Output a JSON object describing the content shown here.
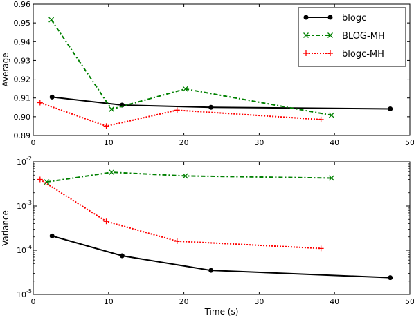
{
  "chart_data": [
    {
      "type": "line",
      "xlabel": "",
      "ylabel": "Average",
      "xlim": [
        0,
        50
      ],
      "ylim": [
        0.89,
        0.96
      ],
      "xticks": [
        "0",
        "10",
        "20",
        "30",
        "40",
        "50"
      ],
      "yticks": [
        "0.89",
        "0.90",
        "0.91",
        "0.92",
        "0.93",
        "0.94",
        "0.95",
        "0.96"
      ],
      "legend": {
        "position": "top-right"
      },
      "series": [
        {
          "name": "blogc",
          "color": "#000000",
          "style": "solid",
          "marker": "circle",
          "x": [
            2.5,
            11.8,
            23.6,
            47.4
          ],
          "y": [
            0.9105,
            0.9062,
            0.905,
            0.9042
          ]
        },
        {
          "name": "BLOG-MH",
          "color": "#008000",
          "style": "dashdot",
          "marker": "x",
          "x": [
            2.4,
            10.4,
            20.2,
            39.6
          ],
          "y": [
            0.9517,
            0.904,
            0.9148,
            0.9008
          ]
        },
        {
          "name": "blogc-MH",
          "color": "#ff0000",
          "style": "dotted",
          "marker": "plus",
          "x": [
            0.9,
            9.7,
            19.1,
            38.2
          ],
          "y": [
            0.9075,
            0.895,
            0.9035,
            0.8985
          ]
        }
      ]
    },
    {
      "type": "line",
      "xlabel": "Time (s)",
      "ylabel": "Variance",
      "xlim": [
        0,
        50
      ],
      "ylim_exp": [
        -5,
        -2
      ],
      "yscale": "log",
      "xticks": [
        "0",
        "10",
        "20",
        "30",
        "40",
        "50"
      ],
      "yticks": [
        {
          "base": "10",
          "exp": "-5",
          "value": -5
        },
        {
          "base": "10",
          "exp": "-4",
          "value": -4
        },
        {
          "base": "10",
          "exp": "-3",
          "value": -3
        },
        {
          "base": "10",
          "exp": "-2",
          "value": -2
        }
      ],
      "series": [
        {
          "name": "blogc",
          "color": "#000000",
          "style": "solid",
          "marker": "circle",
          "x": [
            2.5,
            11.8,
            23.6,
            47.4
          ],
          "y": [
            0.00021,
            7.5e-05,
            3.5e-05,
            2.4e-05
          ]
        },
        {
          "name": "BLOG-MH",
          "color": "#008000",
          "style": "dashdot",
          "marker": "x",
          "x": [
            1.8,
            10.4,
            20.2,
            39.6
          ],
          "y": [
            0.0035,
            0.0058,
            0.0048,
            0.0043
          ]
        },
        {
          "name": "blogc-MH",
          "color": "#ff0000",
          "style": "dotted",
          "marker": "plus",
          "x": [
            0.9,
            9.7,
            19.1,
            38.2
          ],
          "y": [
            0.004,
            0.00045,
            0.00016,
            0.00011
          ]
        }
      ]
    }
  ]
}
